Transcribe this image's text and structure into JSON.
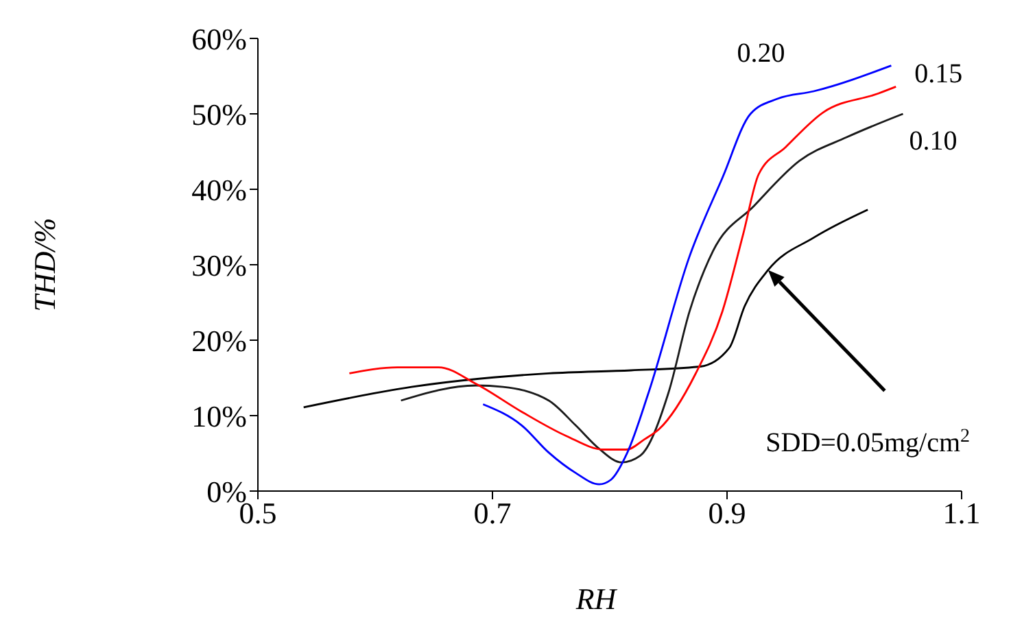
{
  "chart_data": {
    "type": "line",
    "xlabel": "RH",
    "ylabel": "THD/%",
    "xlim": [
      0.5,
      1.1
    ],
    "xticks": [
      0.5,
      0.7,
      0.9,
      1.1
    ],
    "ylim": [
      0,
      60
    ],
    "yticks": [
      {
        "value": 0,
        "label": "0%"
      },
      {
        "value": 10,
        "label": "10%"
      },
      {
        "value": 20,
        "label": "20%"
      },
      {
        "value": 30,
        "label": "30%"
      },
      {
        "value": 40,
        "label": "40%"
      },
      {
        "value": 50,
        "label": "50%"
      },
      {
        "value": 60,
        "label": "60%"
      }
    ],
    "marker": "none",
    "grid": false,
    "series": [
      {
        "name": "SDD=0.05mg/cm$^{2}$",
        "color": "#000000",
        "x": [
          0.539,
          0.631,
          0.748,
          0.818,
          0.877,
          0.902,
          0.915,
          0.935,
          0.974,
          1.02
        ],
        "values": [
          11.1,
          13.8,
          15.6,
          16,
          16.5,
          19,
          24.5,
          29.3,
          33.6,
          37.3
        ]
      },
      {
        "name": "0.10",
        "color": "#1a1a1a",
        "x": [
          0.622,
          0.686,
          0.709,
          0.748,
          0.771,
          0.791,
          0.81,
          0.826,
          0.85,
          0.868,
          0.888,
          0.923,
          0.962,
          1.002,
          1.05
        ],
        "values": [
          12,
          14,
          13.8,
          12,
          8.7,
          5.6,
          3.8,
          4.7,
          13,
          23.8,
          31.8,
          37.8,
          43.8,
          46.9,
          50
        ]
      },
      {
        "name": "0.15",
        "color": "#ff0000",
        "x": [
          0.578,
          0.619,
          0.654,
          0.686,
          0.725,
          0.763,
          0.795,
          0.814,
          0.83,
          0.842,
          0.873,
          0.896,
          0.914,
          0.927,
          0.95,
          0.982,
          1.029,
          1.044
        ],
        "values": [
          15.6,
          16.4,
          16.4,
          14.2,
          10.5,
          7.3,
          5.5,
          5.5,
          6.9,
          8.2,
          15.5,
          23.8,
          34.2,
          42,
          45.6,
          50.2,
          52.7,
          53.6
        ]
      },
      {
        "name": "0.20",
        "color": "#0000ff",
        "x": [
          0.692,
          0.725,
          0.748,
          0.771,
          0.791,
          0.801,
          0.815,
          0.833,
          0.868,
          0.896,
          0.92,
          0.943,
          0.974,
          1.04
        ],
        "values": [
          11.5,
          8.7,
          5.1,
          2.4,
          0.9,
          1.5,
          5.1,
          13,
          31.1,
          41.5,
          50,
          52,
          53,
          56.4
        ]
      }
    ]
  }
}
